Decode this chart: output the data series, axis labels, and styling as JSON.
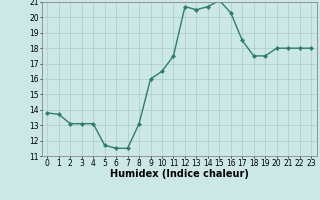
{
  "x": [
    0,
    1,
    2,
    3,
    4,
    5,
    6,
    7,
    8,
    9,
    10,
    11,
    12,
    13,
    14,
    15,
    16,
    17,
    18,
    19,
    20,
    21,
    22,
    23
  ],
  "y": [
    13.8,
    13.7,
    13.1,
    13.1,
    13.1,
    11.7,
    11.5,
    11.5,
    13.1,
    16.0,
    16.5,
    17.5,
    20.7,
    20.5,
    20.7,
    21.1,
    20.3,
    18.5,
    17.5,
    17.5,
    18.0,
    18.0,
    18.0,
    18.0
  ],
  "xlabel": "Humidex (Indice chaleur)",
  "ylim": [
    11,
    21
  ],
  "xlim": [
    -0.5,
    23.5
  ],
  "yticks": [
    11,
    12,
    13,
    14,
    15,
    16,
    17,
    18,
    19,
    20,
    21
  ],
  "xticks": [
    0,
    1,
    2,
    3,
    4,
    5,
    6,
    7,
    8,
    9,
    10,
    11,
    12,
    13,
    14,
    15,
    16,
    17,
    18,
    19,
    20,
    21,
    22,
    23
  ],
  "line_color": "#2e7d6e",
  "marker": "D",
  "marker_size": 2.0,
  "bg_color": "#cce8e6",
  "grid_color": "#aaccca",
  "tick_fontsize": 5.5,
  "xlabel_fontsize": 7.0,
  "line_width": 1.0
}
